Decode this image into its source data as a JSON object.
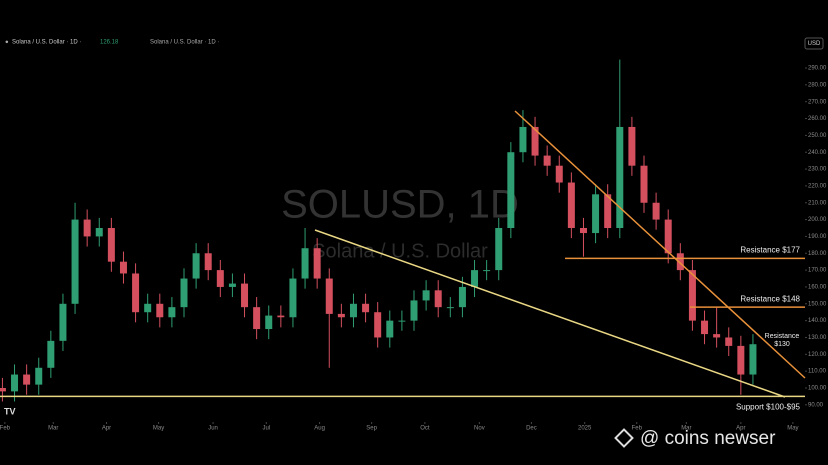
{
  "header": {
    "symbol_title": "Solana / U.S. Dollar · 1D ·",
    "last_price": "126.18",
    "currency": "USD"
  },
  "watermark": {
    "line1": "SOLUSD, 1D",
    "line2": "Solana / U.S. Dollar"
  },
  "brand": {
    "logo": "TV",
    "site": "@ coins newser"
  },
  "chart_data": {
    "type": "candlestick",
    "up_color": "#2f9e72",
    "down_color": "#d4505f",
    "categories": [
      null,
      null,
      null,
      null,
      null,
      null,
      null,
      null,
      null,
      null,
      null,
      null,
      null,
      null,
      null,
      null,
      null,
      null,
      null,
      null,
      null,
      null,
      null,
      null,
      null,
      null,
      null,
      null,
      null,
      null,
      null,
      null,
      null,
      null,
      null,
      null,
      null,
      null,
      null,
      null,
      null,
      null,
      null,
      null,
      null,
      null,
      null,
      null,
      null,
      null,
      null,
      null,
      null,
      null,
      null,
      null,
      null,
      null,
      null,
      null,
      null,
      null,
      null
    ],
    "open": [
      100,
      98,
      108,
      102,
      112,
      128,
      150,
      200,
      190,
      195,
      175,
      168,
      145,
      150,
      142,
      148,
      165,
      180,
      170,
      160,
      162,
      148,
      135,
      143,
      142,
      165,
      183,
      165,
      144,
      142,
      150,
      145,
      130,
      140,
      140,
      152,
      158,
      148,
      148,
      160,
      170,
      170,
      195,
      240,
      255,
      238,
      232,
      222,
      195,
      192,
      215,
      195,
      255,
      232,
      210,
      200,
      180,
      170,
      140,
      132,
      130,
      125,
      108
    ],
    "high": [
      106,
      114,
      114,
      118,
      134,
      156,
      210,
      206,
      201,
      201,
      181,
      174,
      156,
      156,
      154,
      171,
      186,
      186,
      176,
      168,
      168,
      154,
      149,
      149,
      171,
      195,
      189,
      171,
      150,
      156,
      156,
      151,
      146,
      146,
      158,
      164,
      164,
      154,
      166,
      176,
      176,
      201,
      246,
      265,
      261,
      244,
      238,
      228,
      201,
      221,
      221,
      295,
      261,
      238,
      216,
      206,
      186,
      176,
      146,
      148,
      136,
      131,
      132
    ],
    "low": [
      92,
      92,
      96,
      96,
      106,
      122,
      144,
      184,
      184,
      169,
      162,
      139,
      139,
      136,
      136,
      142,
      159,
      164,
      154,
      154,
      142,
      129,
      129,
      136,
      136,
      159,
      159,
      112,
      136,
      136,
      139,
      124,
      124,
      134,
      134,
      146,
      142,
      142,
      142,
      154,
      164,
      164,
      189,
      234,
      232,
      226,
      216,
      189,
      178,
      186,
      189,
      189,
      226,
      204,
      194,
      174,
      164,
      134,
      126,
      124,
      119,
      96,
      102
    ],
    "close": [
      98,
      108,
      102,
      112,
      128,
      150,
      200,
      190,
      195,
      175,
      168,
      145,
      150,
      142,
      148,
      165,
      180,
      170,
      160,
      162,
      148,
      135,
      143,
      142,
      165,
      183,
      165,
      144,
      142,
      150,
      145,
      130,
      140,
      140,
      152,
      158,
      148,
      148,
      160,
      170,
      170,
      195,
      240,
      255,
      238,
      232,
      222,
      195,
      192,
      215,
      195,
      255,
      232,
      210,
      200,
      180,
      170,
      140,
      132,
      130,
      125,
      108,
      126
    ],
    "xlim": [
      -0.2,
      66.3
    ],
    "xticks": [
      {
        "value": 0.2,
        "label": "Feb"
      },
      {
        "value": 4.2,
        "label": "Mar"
      },
      {
        "value": 8.6,
        "label": "Apr"
      },
      {
        "value": 12.9,
        "label": "May"
      },
      {
        "value": 17.4,
        "label": "Jun"
      },
      {
        "value": 21.8,
        "label": "Jul"
      },
      {
        "value": 26.2,
        "label": "Aug"
      },
      {
        "value": 30.5,
        "label": "Sep"
      },
      {
        "value": 34.9,
        "label": "Oct"
      },
      {
        "value": 39.4,
        "label": "Nov"
      },
      {
        "value": 43.7,
        "label": "Dec"
      },
      {
        "value": 48.1,
        "label": "2025"
      },
      {
        "value": 52.4,
        "label": "Feb"
      },
      {
        "value": 56.5,
        "label": "Mar"
      },
      {
        "value": 61.0,
        "label": "Apr"
      },
      {
        "value": 65.3,
        "label": "May"
      }
    ],
    "ylim": [
      81,
      309.6
    ],
    "yticks": [
      {
        "value": 90,
        "label": "90.00"
      },
      {
        "value": 100,
        "label": "100.00"
      },
      {
        "value": 110,
        "label": "110.00"
      },
      {
        "value": 120,
        "label": "120.00"
      },
      {
        "value": 130,
        "label": "130.00"
      },
      {
        "value": 140,
        "label": "140.00"
      },
      {
        "value": 150,
        "label": "150.00"
      },
      {
        "value": 160,
        "label": "160.00"
      },
      {
        "value": 170,
        "label": "170.00"
      },
      {
        "value": 180,
        "label": "180.00"
      },
      {
        "value": 190,
        "label": "190.00"
      },
      {
        "value": 200,
        "label": "200.00"
      },
      {
        "value": 210,
        "label": "210.00"
      },
      {
        "value": 220,
        "label": "220.00"
      },
      {
        "value": 230,
        "label": "230.00"
      },
      {
        "value": 240,
        "label": "240.00"
      },
      {
        "value": 250,
        "label": "250.00"
      },
      {
        "value": 260,
        "label": "260.00"
      },
      {
        "value": 270,
        "label": "270.00"
      },
      {
        "value": 280,
        "label": "280.00"
      },
      {
        "value": 290,
        "label": "290.00"
      }
    ],
    "levels": [
      {
        "label": "Resistance $177",
        "value": 177,
        "color": "#e8913a"
      },
      {
        "label": "Resistance $148",
        "value": 148,
        "color": "#e8913a"
      },
      {
        "label": "Support $100-$95",
        "value": 95,
        "color": "#e9d784"
      }
    ],
    "annotation": [
      "Resistance",
      "$130"
    ]
  }
}
